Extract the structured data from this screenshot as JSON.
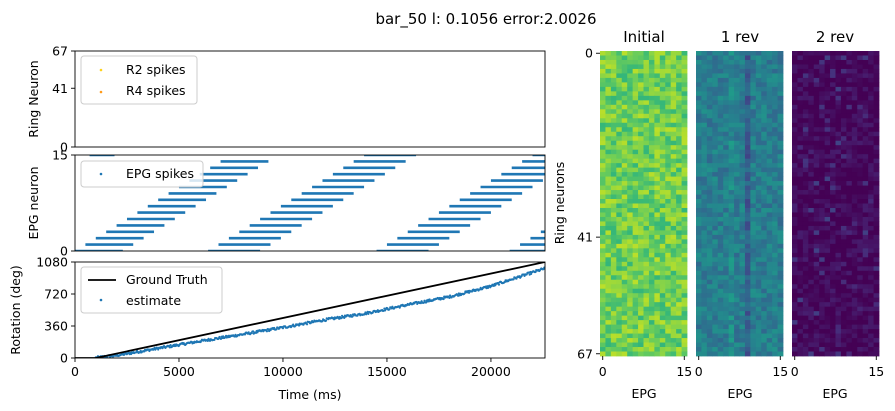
{
  "figure": {
    "suptitle": "bar_50 l: 0.1056 error:2.0026"
  },
  "chart_data": [
    {
      "id": "ring",
      "type": "scatter",
      "xlabel": "",
      "ylabel": "Ring Neuron",
      "xlim": [
        0,
        22600
      ],
      "ylim": [
        0,
        67
      ],
      "yticks": [
        0,
        41,
        67
      ],
      "legend": {
        "placement": "top-left",
        "entries": [
          "R2 spikes",
          "R4 spikes"
        ]
      },
      "series": [
        {
          "name": "R2 spikes",
          "color": "#ffd21a",
          "points": []
        },
        {
          "name": "R4 spikes",
          "color": "#ff9b1a",
          "points": []
        }
      ]
    },
    {
      "id": "epg",
      "type": "scatter",
      "xlabel": "",
      "ylabel": "EPG neuron",
      "xlim": [
        0,
        22600
      ],
      "ylim": [
        0,
        15
      ],
      "yticks": [
        0,
        15
      ],
      "legend": {
        "placement": "top-left",
        "entries": [
          "EPG spikes"
        ]
      },
      "series": [
        {
          "name": "EPG spikes",
          "color": "#1f77b4",
          "description_of_pattern": "diagonal staircase bands",
          "bands": [
            {
              "start_ms": 0,
              "step_ms": 500,
              "length_ms": 2300,
              "first_neuron": 0,
              "last_neuron": 15,
              "top_start_ms": 700
            },
            {
              "start_ms": 6400,
              "step_ms": 500,
              "length_ms": 2500,
              "first_neuron": 0,
              "last_neuron": 15
            },
            {
              "start_ms": 14500,
              "step_ms": 500,
              "length_ms": 2500,
              "first_neuron": 0,
              "last_neuron": 15
            },
            {
              "start_ms": 20900,
              "step_ms": 500,
              "length_ms": 2500,
              "first_neuron": 0,
              "last_neuron": 15
            }
          ]
        }
      ]
    },
    {
      "id": "rotation",
      "type": "line",
      "xlabel": "Time (ms)",
      "ylabel": "Rotation (deg)",
      "xlim": [
        0,
        22600
      ],
      "ylim": [
        0,
        1080
      ],
      "xticks": [
        0,
        5000,
        10000,
        15000,
        20000
      ],
      "yticks": [
        0,
        360,
        720,
        1080
      ],
      "legend": {
        "placement": "top-left",
        "entries": [
          "Ground Truth",
          "estimate"
        ]
      },
      "series": [
        {
          "name": "Ground Truth",
          "color": "#000000",
          "x": [
            0,
            1000,
            22600
          ],
          "y": [
            0,
            0,
            1080
          ]
        },
        {
          "name": "estimate",
          "color": "#1f77b4",
          "x": [
            1000,
            2000,
            4000,
            6000,
            8000,
            10000,
            12000,
            14000,
            16000,
            18000,
            20000,
            22600
          ],
          "y": [
            5,
            30,
            110,
            190,
            265,
            345,
            430,
            505,
            600,
            690,
            810,
            1010
          ]
        }
      ]
    },
    {
      "id": "heatmaps",
      "type": "heatmap",
      "ylabel": "Ring neurons",
      "yticks": [
        0,
        41,
        67
      ],
      "panels": [
        {
          "title": "Initial",
          "xlabel": "EPG",
          "xticks": [
            0,
            15
          ],
          "mean": 0.78,
          "spread": 0.12,
          "column_effects": []
        },
        {
          "title": "1 rev",
          "xlabel": "EPG",
          "xticks": [
            0,
            15
          ],
          "mean": 0.42,
          "spread": 0.09,
          "column_effects": [
            {
              "column": 9,
              "delta": -0.13
            },
            {
              "column": 6,
              "delta": 0.05
            }
          ]
        },
        {
          "title": "2 rev",
          "xlabel": "EPG",
          "xticks": [
            0,
            15
          ],
          "mean": 0.02,
          "spread": 0.06,
          "column_effects": [
            {
              "column": 9,
              "delta": -0.02
            }
          ]
        }
      ],
      "grid": {
        "rows": 68,
        "cols": 16
      },
      "colormap": "viridis"
    }
  ],
  "colors": {
    "axis": "#000000",
    "epg": "#1f77b4",
    "truth": "#000000"
  }
}
